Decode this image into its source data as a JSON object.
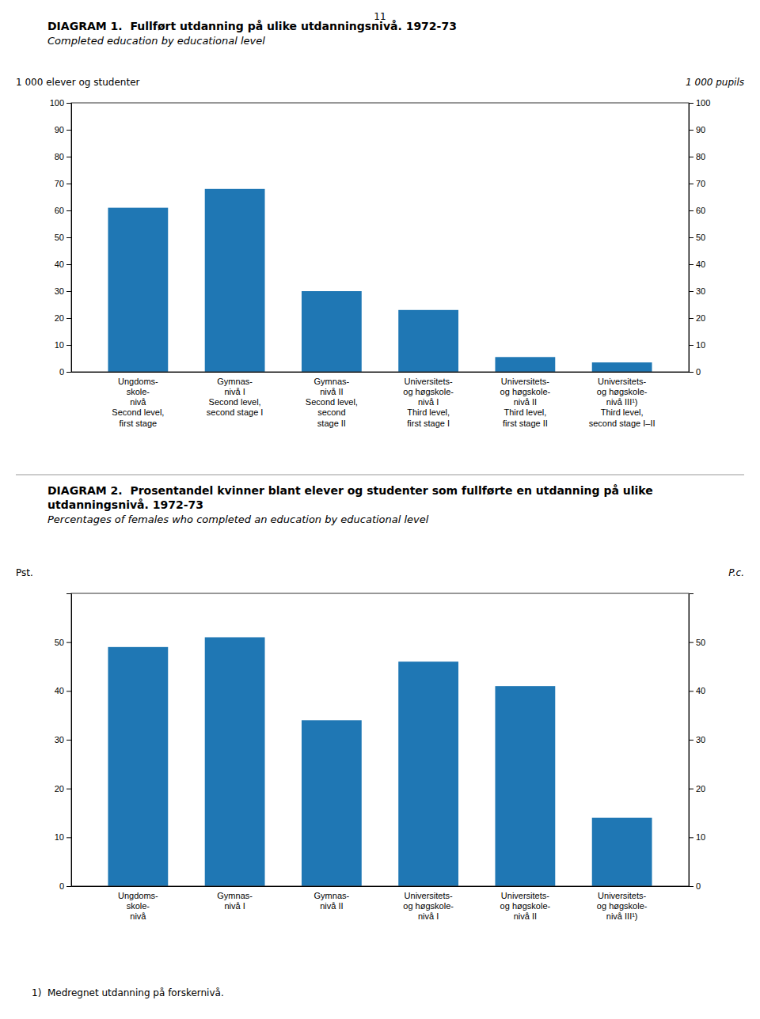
{
  "chart_data": [
    {
      "type": "bar",
      "title": "DIAGRAM 1.  Fullført utdanning på ulike utdanningsnivå. 1972-73",
      "subtitle": "Completed education by educational level",
      "ylabel": "1 000 elever og studenter",
      "y2label": "1 000 pupils",
      "categories": [
        "Ungdoms-\nskole-\nnivå\nSecond level,\nfirst stage",
        "Gymnas-\nnivå I\nSecond level,\nsecond stage I",
        "Gymnas-\nnivå II\nSecond level,\nsecond\nstage II",
        "Universitets-\nog høgskole-\nnivå I\nThird level,\nfirst stage I",
        "Universitets-\nog høgskole-\nnivå II\nThird level,\nfirst stage II",
        "Universitets-\nog høgskole-\nnivå III¹)\nThird level,\nsecond stage I–II"
      ],
      "values": [
        61,
        68,
        30,
        23,
        5.5,
        3.5
      ],
      "ylim": [
        0,
        100
      ],
      "yticks": [
        0,
        10,
        20,
        30,
        40,
        50,
        60,
        70,
        80,
        90,
        100
      ],
      "y2lim": [
        0,
        100
      ],
      "y2ticks": [
        0,
        10,
        20,
        30,
        40,
        50,
        60,
        70,
        80,
        90,
        100
      ],
      "grid": false,
      "annotations": [
        "11"
      ]
    },
    {
      "type": "bar",
      "title": "DIAGRAM 2.  Prosentandel kvinner blant elever og studenter som fullførte en utdanning på ulike utdanningsnivå. 1972-73",
      "subtitle": "Percentages of females who completed an education by educational level",
      "ylabel": "Pst.",
      "y2label": "P.c.",
      "categories": [
        "Ungdoms-\nskole-\nnivå",
        "Gymnas-\nnivå I",
        "Gymnas-\nnivå II",
        "Universitets-\nog høgskole-\nnivå I",
        "Universitets-\nog høgskole-\nnivå II",
        "Universitets-\nog høgskole-\nnivå III¹)"
      ],
      "values": [
        49,
        51,
        34,
        46,
        41,
        14
      ],
      "ylim": [
        0,
        60
      ],
      "yticks": [
        0,
        10,
        20,
        30,
        40,
        50
      ],
      "y2lim": [
        0,
        60
      ],
      "y2ticks": [
        0,
        10,
        20,
        30,
        40,
        50
      ],
      "grid": false,
      "annotations": [
        "1)  Medregnet utdanning på forskernivå."
      ]
    }
  ]
}
